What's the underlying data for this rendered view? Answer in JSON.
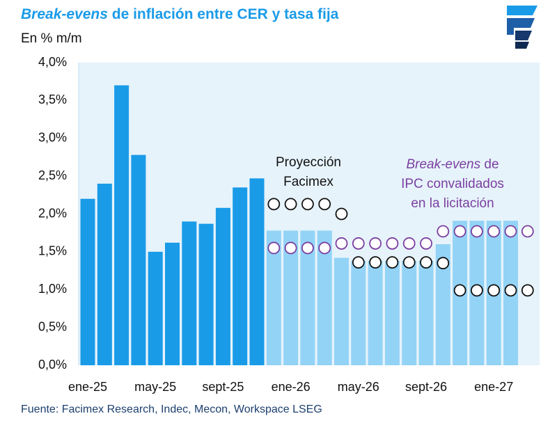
{
  "chart_data": {
    "type": "bar",
    "title_italic": "Break-evens",
    "title_rest": " de inflación entre CER y tasa fija",
    "subtitle": "En % m/m",
    "source": "Fuente: Facimex Research, Indec, Mecon, Workspace LSEG",
    "annotation_facimex": [
      "Proyección",
      "Facimex"
    ],
    "annotation_breakeven_italic": "Break-evens",
    "annotation_breakeven_rest": " de",
    "annotation_breakeven_lines": [
      "IPC convalidados",
      "en la licitación"
    ],
    "categories": [
      "ene-25",
      null,
      null,
      null,
      "may-25",
      null,
      null,
      null,
      "sept-25",
      null,
      null,
      null,
      "ene-26",
      null,
      null,
      null,
      "may-26",
      null,
      null,
      null,
      "sept-26",
      null,
      null,
      null,
      "ene-27",
      null,
      null
    ],
    "ylim": [
      0,
      4
    ],
    "yticks": [
      {
        "value": 0,
        "label": "0,0%"
      },
      {
        "value": 0.5,
        "label": "0,5%"
      },
      {
        "value": 1,
        "label": "1,0%"
      },
      {
        "value": 1.5,
        "label": "1,5%"
      },
      {
        "value": 2,
        "label": "2,0%"
      },
      {
        "value": 2.5,
        "label": "2,5%"
      },
      {
        "value": 3,
        "label": "3,0%"
      },
      {
        "value": 3.5,
        "label": "3,5%"
      },
      {
        "value": 4,
        "label": "4,0%"
      }
    ],
    "series": [
      {
        "color": "#1a9be8",
        "kind": "bar",
        "values": [
          2.2,
          2.4,
          3.7,
          2.78,
          1.5,
          1.62,
          1.9,
          1.87,
          2.08,
          2.35,
          2.47,
          null,
          null,
          null,
          null,
          null,
          null,
          null,
          null,
          null,
          null,
          null,
          null,
          null,
          null,
          null,
          null
        ]
      },
      {
        "color": "#93d3f6",
        "kind": "bar",
        "values": [
          null,
          null,
          null,
          null,
          null,
          null,
          null,
          null,
          null,
          null,
          null,
          1.78,
          1.78,
          1.78,
          1.78,
          1.42,
          1.38,
          1.38,
          1.38,
          1.38,
          1.38,
          1.6,
          1.91,
          1.91,
          1.91,
          1.91,
          null
        ]
      },
      {
        "color": "#111111",
        "kind": "circle",
        "values": [
          null,
          null,
          null,
          null,
          null,
          null,
          null,
          null,
          null,
          null,
          null,
          2.13,
          2.13,
          2.13,
          2.13,
          2.0,
          1.36,
          1.36,
          1.36,
          1.36,
          1.36,
          1.35,
          0.99,
          0.99,
          0.99,
          0.99,
          0.99
        ]
      },
      {
        "color": "#7b3fa0",
        "kind": "circle",
        "values": [
          null,
          null,
          null,
          null,
          null,
          null,
          null,
          null,
          null,
          null,
          null,
          1.55,
          1.55,
          1.55,
          1.55,
          1.61,
          1.61,
          1.61,
          1.61,
          1.61,
          1.61,
          1.77,
          1.77,
          1.77,
          1.77,
          1.77,
          1.77
        ]
      }
    ]
  }
}
